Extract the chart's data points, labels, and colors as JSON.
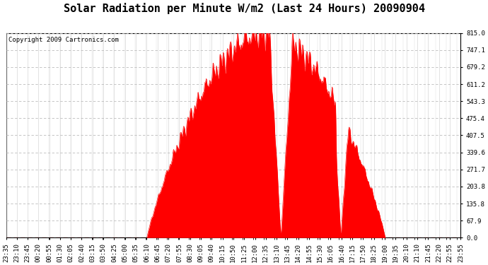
{
  "title": "Solar Radiation per Minute W/m2 (Last 24 Hours) 20090904",
  "copyright_text": "Copyright 2009 Cartronics.com",
  "y_min": 0.0,
  "y_max": 815.0,
  "y_ticks": [
    0.0,
    67.9,
    135.8,
    203.8,
    271.7,
    339.6,
    407.5,
    475.4,
    543.3,
    611.2,
    679.2,
    747.1,
    815.0
  ],
  "fill_color": "#FF0000",
  "bg_color": "#FFFFFF",
  "grid_color_major": "#CCCCCC",
  "grid_color_minor": "#DDDDDD",
  "dashed_line_color": "#FF0000",
  "title_fontsize": 11,
  "copyright_fontsize": 6.5,
  "tick_fontsize": 6.5,
  "x_labels": [
    "23:35",
    "23:10",
    "23:45",
    "00:20",
    "00:55",
    "01:30",
    "02:05",
    "02:40",
    "03:15",
    "03:50",
    "04:25",
    "05:00",
    "05:35",
    "06:10",
    "06:45",
    "07:20",
    "07:55",
    "08:30",
    "09:05",
    "09:40",
    "10:15",
    "10:50",
    "11:25",
    "12:00",
    "12:35",
    "13:10",
    "13:45",
    "14:20",
    "14:55",
    "15:30",
    "16:05",
    "16:40",
    "17:15",
    "17:50",
    "18:25",
    "19:00",
    "19:35",
    "20:10",
    "21:10",
    "21:45",
    "22:20",
    "22:55",
    "23:55"
  ],
  "num_points": 1440,
  "sunrise_minute": 390,
  "sunset_minute": 1170,
  "peak_minute": 745
}
